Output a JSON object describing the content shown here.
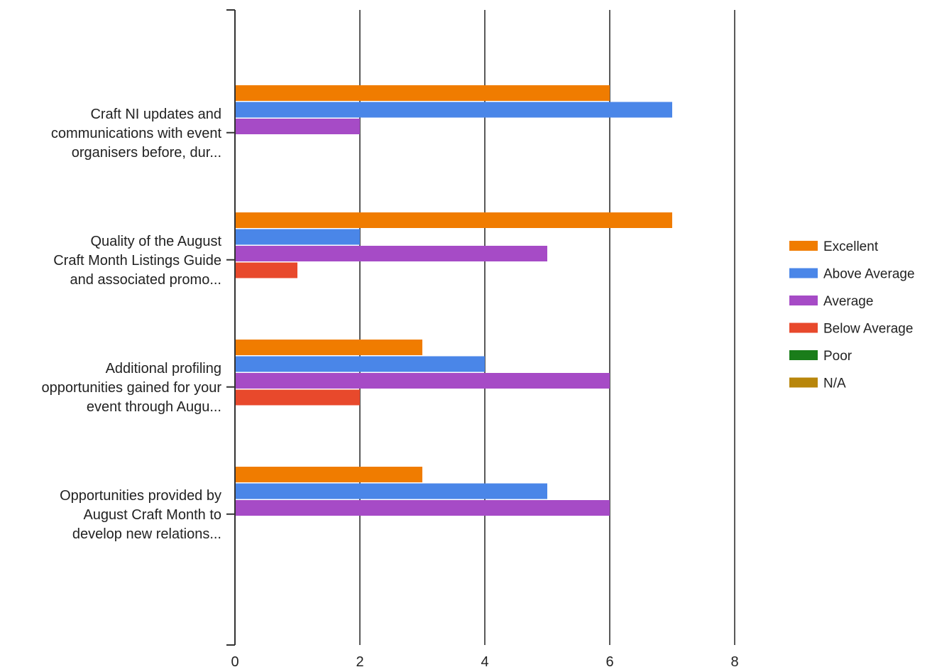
{
  "chart_data": {
    "type": "bar",
    "orientation": "horizontal",
    "categories": [
      [
        "Craft NI updates and",
        "communications with event",
        "organisers before, dur..."
      ],
      [
        "Quality of the August",
        "Craft Month Listings Guide",
        "and associated promo..."
      ],
      [
        "Additional profiling",
        "opportunities gained for your",
        "event through Augu..."
      ],
      [
        "Opportunities provided by",
        "August Craft Month to",
        "develop new relations..."
      ]
    ],
    "series": [
      {
        "name": "Excellent",
        "color": "#f07c00",
        "values": [
          6,
          7,
          3,
          3
        ]
      },
      {
        "name": "Above Average",
        "color": "#4a86e8",
        "values": [
          7,
          2,
          4,
          5
        ]
      },
      {
        "name": "Average",
        "color": "#a64bc6",
        "values": [
          2,
          5,
          6,
          6
        ]
      },
      {
        "name": "Below Average",
        "color": "#e8492c",
        "values": [
          0,
          1,
          2,
          0
        ]
      },
      {
        "name": "Poor",
        "color": "#1a7d1a",
        "values": [
          0,
          0,
          0,
          0
        ]
      },
      {
        "name": "N/A",
        "color": "#b8860b",
        "values": [
          0,
          0,
          0,
          0
        ]
      }
    ],
    "x_ticks": [
      "0",
      "2",
      "4",
      "6",
      "8"
    ],
    "xlim": [
      0,
      8
    ],
    "grid": true,
    "legend_position": "right"
  }
}
